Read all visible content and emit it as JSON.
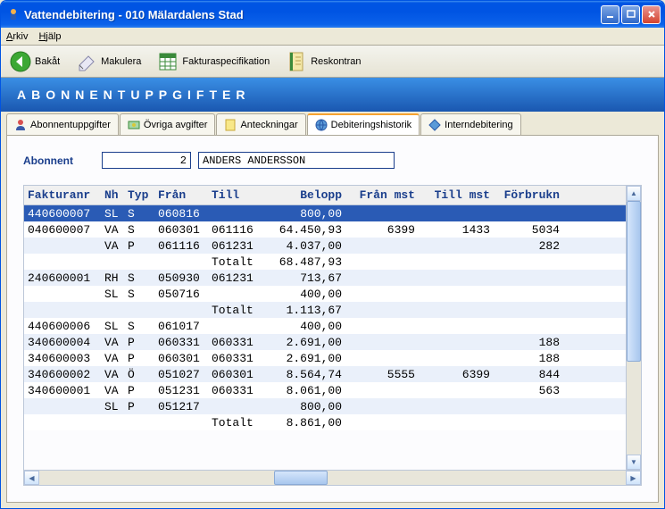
{
  "window": {
    "title": "Vattendebitering  -  010 Mälardalens Stad"
  },
  "menu": {
    "arkiv": "Arkiv",
    "hjalp": "Hjälp"
  },
  "toolbar": {
    "bakat": "Bakåt",
    "makulera": "Makulera",
    "fakturaspec": "Fakturaspecifikation",
    "reskontran": "Reskontran"
  },
  "heading": "ABONNENTUPPGIFTER",
  "tabs": {
    "abonnent": "Abonnentuppgifter",
    "ovriga": "Övriga avgifter",
    "anteck": "Anteckningar",
    "debhist": "Debiteringshistorik",
    "interndeb": "Interndebitering"
  },
  "abonnent": {
    "label": "Abonnent",
    "num": "2",
    "name": "ANDERS ANDERSSON"
  },
  "columns": {
    "fakturanr": "Fakturanr",
    "nh": "Nh",
    "typ": "Typ",
    "fran": "Från",
    "till": "Till",
    "belopp": "Belopp",
    "franmst": "Från mst",
    "tillmst": "Till mst",
    "forbrukn": "Förbrukn"
  },
  "rows": [
    {
      "fak": "440600007",
      "nh": "SL",
      "typ": "S",
      "fran": "060816",
      "till": "",
      "bel": "800,00",
      "franmst": "",
      "tillmst": "",
      "forb": "",
      "sel": true
    },
    {
      "fak": "040600007",
      "nh": "VA",
      "typ": "S",
      "fran": "060301",
      "till": "061116",
      "bel": "64.450,93",
      "franmst": "6399",
      "tillmst": "1433",
      "forb": "5034"
    },
    {
      "fak": "",
      "nh": "VA",
      "typ": "P",
      "fran": "061116",
      "till": "061231",
      "bel": "4.037,00",
      "franmst": "",
      "tillmst": "",
      "forb": "282"
    },
    {
      "fak": "",
      "nh": "",
      "typ": "",
      "fran": "",
      "till": "Totalt",
      "bel": "68.487,93",
      "franmst": "",
      "tillmst": "",
      "forb": ""
    },
    {
      "fak": "240600001",
      "nh": "RH",
      "typ": "S",
      "fran": "050930",
      "till": "061231",
      "bel": "713,67",
      "franmst": "",
      "tillmst": "",
      "forb": ""
    },
    {
      "fak": "",
      "nh": "SL",
      "typ": "S",
      "fran": "050716",
      "till": "",
      "bel": "400,00",
      "franmst": "",
      "tillmst": "",
      "forb": ""
    },
    {
      "fak": "",
      "nh": "",
      "typ": "",
      "fran": "",
      "till": "Totalt",
      "bel": "1.113,67",
      "franmst": "",
      "tillmst": "",
      "forb": ""
    },
    {
      "fak": "440600006",
      "nh": "SL",
      "typ": "S",
      "fran": "061017",
      "till": "",
      "bel": "400,00",
      "franmst": "",
      "tillmst": "",
      "forb": ""
    },
    {
      "fak": "340600004",
      "nh": "VA",
      "typ": "P",
      "fran": "060331",
      "till": "060331",
      "bel": "2.691,00",
      "franmst": "",
      "tillmst": "",
      "forb": "188"
    },
    {
      "fak": "340600003",
      "nh": "VA",
      "typ": "P",
      "fran": "060301",
      "till": "060331",
      "bel": "2.691,00",
      "franmst": "",
      "tillmst": "",
      "forb": "188"
    },
    {
      "fak": "340600002",
      "nh": "VA",
      "typ": "Ö",
      "fran": "051027",
      "till": "060301",
      "bel": "8.564,74",
      "franmst": "5555",
      "tillmst": "6399",
      "forb": "844"
    },
    {
      "fak": "340600001",
      "nh": "VA",
      "typ": "P",
      "fran": "051231",
      "till": "060331",
      "bel": "8.061,00",
      "franmst": "",
      "tillmst": "",
      "forb": "563"
    },
    {
      "fak": "",
      "nh": "SL",
      "typ": "P",
      "fran": "051217",
      "till": "",
      "bel": "800,00",
      "franmst": "",
      "tillmst": "",
      "forb": ""
    },
    {
      "fak": "",
      "nh": "",
      "typ": "",
      "fran": "",
      "till": "Totalt",
      "bel": "8.861,00",
      "franmst": "",
      "tillmst": "",
      "forb": ""
    }
  ],
  "colors": {
    "accent": "#1a57b0",
    "tab_active_border": "#f7a330",
    "row_selected": "#2a5bb5",
    "row_odd": "#eaf0fa"
  }
}
